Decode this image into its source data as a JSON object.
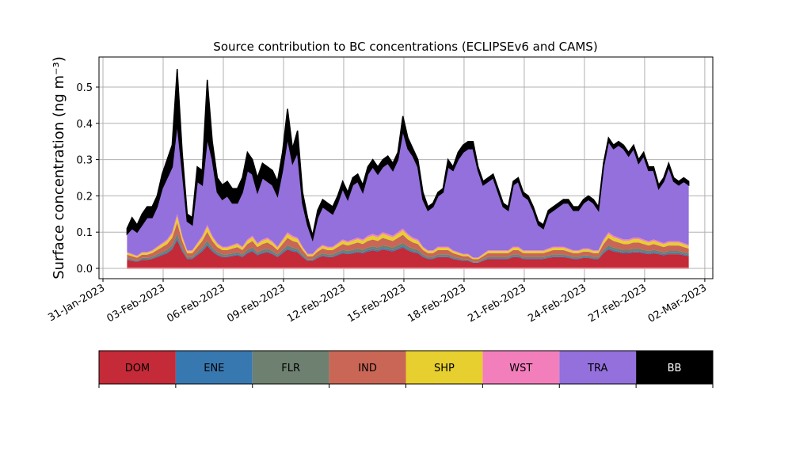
{
  "chart_data": {
    "type": "area",
    "stacked": true,
    "title": "Source contribution to BC concentrations (ECLIPSEv6 and CAMS)",
    "xlabel": "",
    "ylabel": "Surface concentration (ng m⁻³)",
    "ylim": [
      -0.03,
      0.58
    ],
    "yticks": [
      0.0,
      0.1,
      0.2,
      0.3,
      0.4,
      0.5
    ],
    "ytick_labels": [
      "0.0",
      "0.1",
      "0.2",
      "0.3",
      "0.4",
      "0.5"
    ],
    "xlim_days_from_31jan": [
      -0.05,
      30.2
    ],
    "xticks_days_from_31jan": [
      0,
      3,
      6,
      9,
      12,
      15,
      18,
      21,
      24,
      27,
      30
    ],
    "xtick_labels": [
      "31-Jan-2023",
      "03-Feb-2023",
      "06-Feb-2023",
      "09-Feb-2023",
      "12-Feb-2023",
      "15-Feb-2023",
      "18-Feb-2023",
      "21-Feb-2023",
      "24-Feb-2023",
      "27-Feb-2023",
      "02-Mar-2023"
    ],
    "grid": true,
    "x_start_day": 1.2,
    "x_step_days": 0.25,
    "series_order": [
      "DOM",
      "ENE",
      "FLR",
      "IND",
      "SHP",
      "WST",
      "TRA",
      "BB"
    ],
    "colors": {
      "DOM": "#c42a37",
      "ENE": "#3878b0",
      "FLR": "#6e8070",
      "IND": "#c96655",
      "SHP": "#e6cf2e",
      "WST": "#f27fbc",
      "TRA": "#9370db",
      "BB": "#000000"
    },
    "total": [
      0.11,
      0.14,
      0.12,
      0.15,
      0.17,
      0.17,
      0.2,
      0.26,
      0.3,
      0.34,
      0.55,
      0.32,
      0.15,
      0.14,
      0.28,
      0.27,
      0.52,
      0.35,
      0.25,
      0.23,
      0.24,
      0.22,
      0.22,
      0.25,
      0.32,
      0.3,
      0.25,
      0.29,
      0.28,
      0.27,
      0.24,
      0.32,
      0.44,
      0.33,
      0.38,
      0.21,
      0.14,
      0.09,
      0.16,
      0.19,
      0.18,
      0.17,
      0.2,
      0.24,
      0.21,
      0.25,
      0.26,
      0.23,
      0.28,
      0.3,
      0.28,
      0.3,
      0.31,
      0.29,
      0.32,
      0.42,
      0.36,
      0.33,
      0.3,
      0.21,
      0.17,
      0.18,
      0.21,
      0.22,
      0.3,
      0.28,
      0.32,
      0.34,
      0.35,
      0.35,
      0.28,
      0.24,
      0.25,
      0.26,
      0.22,
      0.18,
      0.17,
      0.24,
      0.25,
      0.21,
      0.2,
      0.17,
      0.13,
      0.12,
      0.16,
      0.17,
      0.18,
      0.19,
      0.19,
      0.17,
      0.17,
      0.19,
      0.2,
      0.19,
      0.17,
      0.29,
      0.36,
      0.34,
      0.35,
      0.34,
      0.32,
      0.34,
      0.3,
      0.32,
      0.28,
      0.28,
      0.23,
      0.25,
      0.29,
      0.25,
      0.24,
      0.25,
      0.24
    ],
    "tra_top": [
      0.095,
      0.11,
      0.1,
      0.12,
      0.14,
      0.14,
      0.17,
      0.22,
      0.25,
      0.28,
      0.4,
      0.27,
      0.13,
      0.12,
      0.24,
      0.23,
      0.36,
      0.3,
      0.21,
      0.19,
      0.2,
      0.18,
      0.18,
      0.21,
      0.27,
      0.26,
      0.21,
      0.25,
      0.24,
      0.23,
      0.2,
      0.27,
      0.36,
      0.29,
      0.32,
      0.18,
      0.12,
      0.08,
      0.14,
      0.17,
      0.16,
      0.15,
      0.18,
      0.22,
      0.19,
      0.23,
      0.24,
      0.21,
      0.26,
      0.28,
      0.26,
      0.28,
      0.29,
      0.27,
      0.3,
      0.38,
      0.33,
      0.31,
      0.28,
      0.19,
      0.16,
      0.17,
      0.2,
      0.21,
      0.28,
      0.27,
      0.3,
      0.32,
      0.33,
      0.33,
      0.27,
      0.23,
      0.24,
      0.25,
      0.21,
      0.17,
      0.16,
      0.23,
      0.24,
      0.2,
      0.19,
      0.16,
      0.12,
      0.11,
      0.15,
      0.16,
      0.17,
      0.18,
      0.18,
      0.16,
      0.16,
      0.18,
      0.19,
      0.18,
      0.16,
      0.28,
      0.35,
      0.33,
      0.34,
      0.33,
      0.31,
      0.33,
      0.29,
      0.31,
      0.27,
      0.27,
      0.22,
      0.24,
      0.28,
      0.24,
      0.23,
      0.24,
      0.23
    ],
    "base_total": [
      0.045,
      0.04,
      0.035,
      0.045,
      0.045,
      0.05,
      0.06,
      0.07,
      0.08,
      0.1,
      0.15,
      0.09,
      0.05,
      0.05,
      0.07,
      0.09,
      0.12,
      0.09,
      0.07,
      0.06,
      0.06,
      0.065,
      0.07,
      0.06,
      0.08,
      0.09,
      0.07,
      0.08,
      0.085,
      0.075,
      0.06,
      0.08,
      0.1,
      0.09,
      0.085,
      0.06,
      0.04,
      0.04,
      0.055,
      0.065,
      0.06,
      0.06,
      0.07,
      0.08,
      0.075,
      0.08,
      0.085,
      0.08,
      0.09,
      0.095,
      0.09,
      0.1,
      0.095,
      0.09,
      0.1,
      0.11,
      0.095,
      0.085,
      0.08,
      0.06,
      0.05,
      0.05,
      0.06,
      0.06,
      0.06,
      0.05,
      0.045,
      0.04,
      0.04,
      0.03,
      0.03,
      0.04,
      0.05,
      0.05,
      0.05,
      0.05,
      0.05,
      0.06,
      0.06,
      0.05,
      0.05,
      0.05,
      0.05,
      0.05,
      0.055,
      0.06,
      0.06,
      0.06,
      0.055,
      0.05,
      0.05,
      0.055,
      0.055,
      0.05,
      0.05,
      0.08,
      0.1,
      0.09,
      0.085,
      0.08,
      0.08,
      0.085,
      0.085,
      0.08,
      0.075,
      0.08,
      0.075,
      0.07,
      0.075,
      0.075,
      0.075,
      0.07,
      0.065
    ],
    "component_shares_of_base": {
      "DOM": 0.52,
      "ENE": 0.04,
      "FLR": 0.08,
      "IND": 0.2,
      "SHP": 0.11,
      "WST": 0.05
    },
    "legend": {
      "placement": "bottom",
      "entries": [
        "DOM",
        "ENE",
        "FLR",
        "IND",
        "SHP",
        "WST",
        "TRA",
        "BB"
      ]
    }
  }
}
